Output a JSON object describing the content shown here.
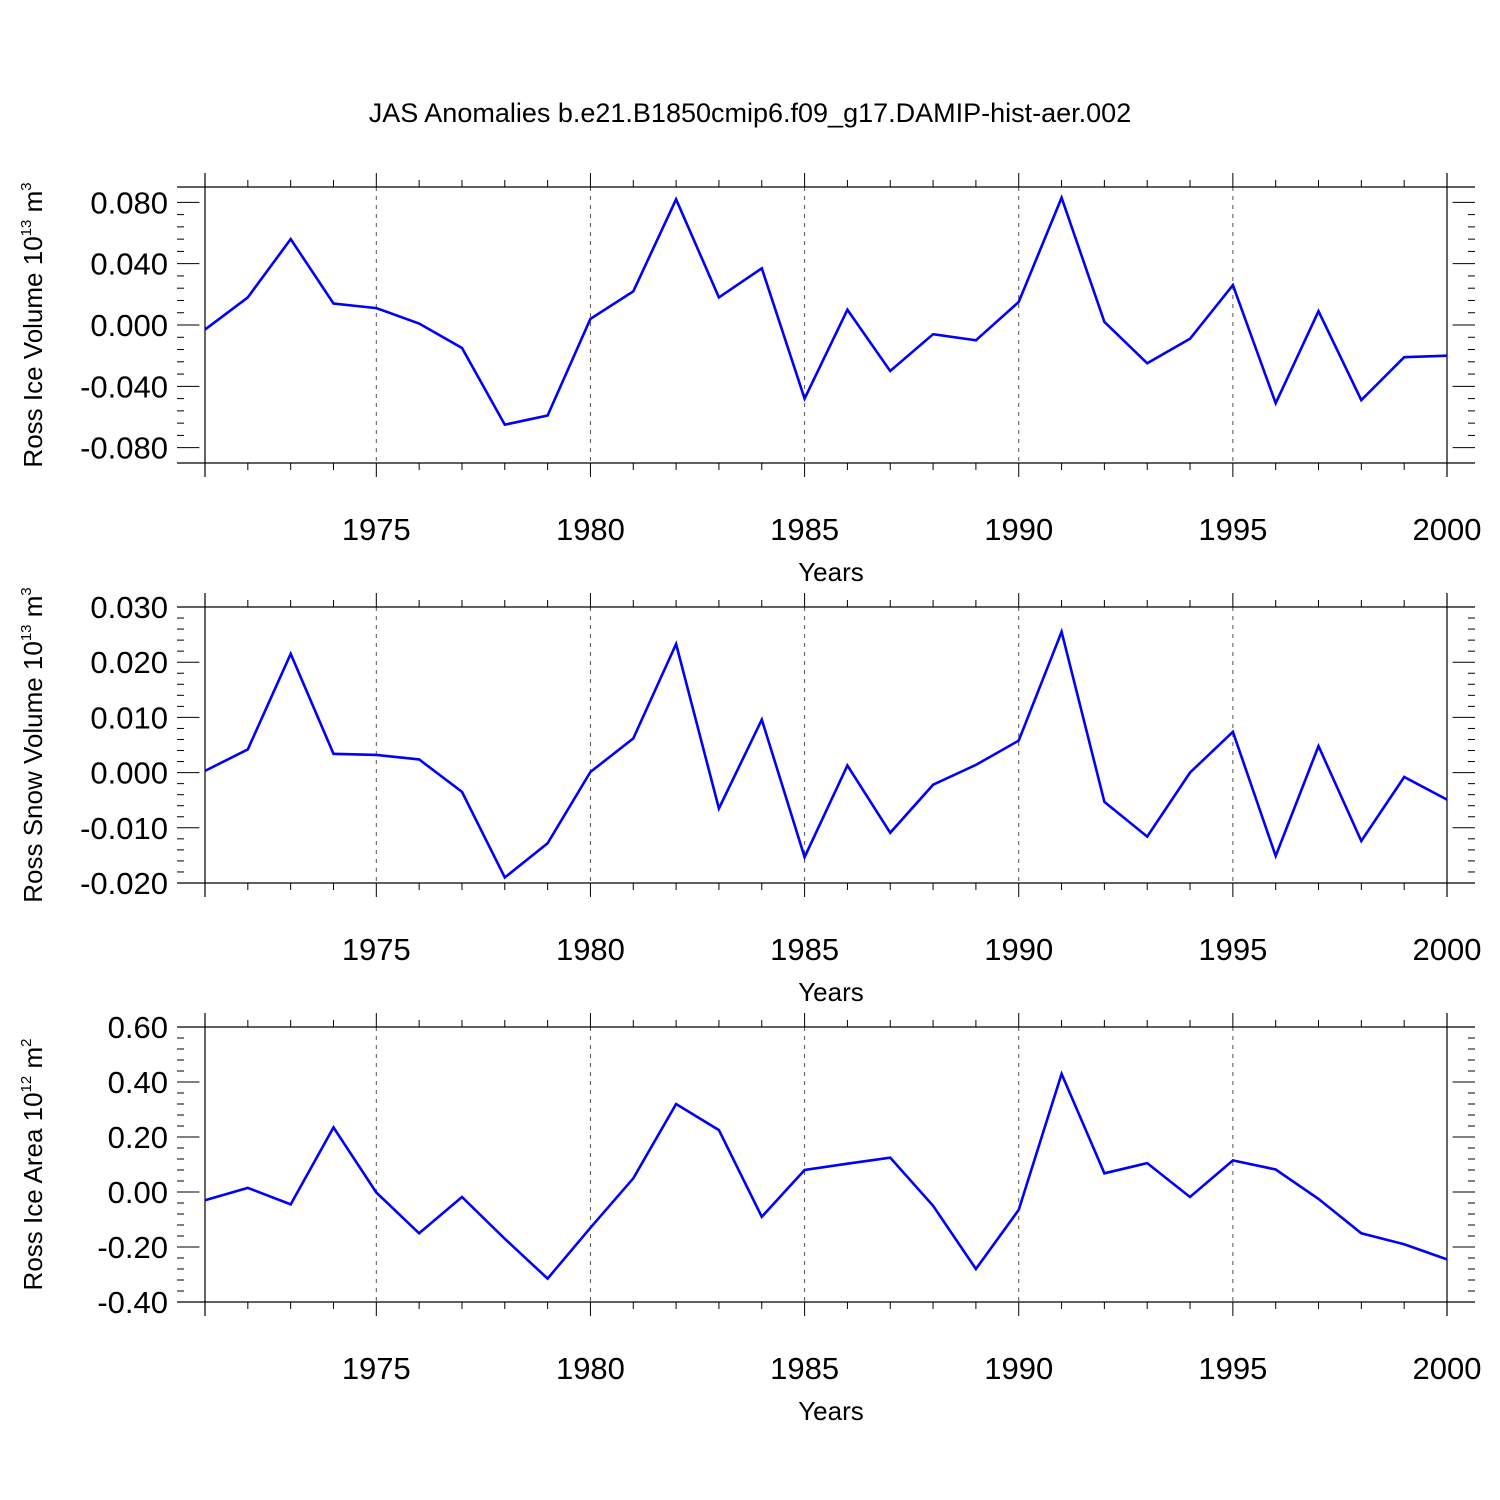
{
  "title": "JAS Anomalies b.e21.B1850cmip6.f09_g17.DAMIP-hist-aer.002",
  "line_color": "#0000ff",
  "chart_data": [
    {
      "type": "line",
      "ylabel_text": "Ross Ice Volume 10",
      "ylabel_exp": "13",
      "ylabel_unit": " m",
      "ylabel_unit_exp": "3",
      "xlabel": "Years",
      "xlim": [
        1971,
        2000
      ],
      "ylim": [
        -0.09,
        0.09
      ],
      "xticks": [
        1975,
        1980,
        1985,
        1990,
        1995,
        2000
      ],
      "yticks": [
        -0.08,
        -0.04,
        0.0,
        0.04,
        0.08
      ],
      "ytick_labels": [
        "-0.080",
        "-0.040",
        "0.000",
        "0.040",
        "0.080"
      ],
      "grid": "dashed vertical at major x ticks",
      "series": [
        {
          "x": [
            1971,
            1972,
            1973,
            1974,
            1975,
            1976,
            1977,
            1978,
            1979,
            1980,
            1981,
            1982,
            1983,
            1984,
            1985,
            1986,
            1987,
            1988,
            1989,
            1990,
            1991,
            1992,
            1993,
            1994,
            1995,
            1996,
            1997,
            1998,
            1999,
            2000
          ],
          "values": [
            -0.003,
            0.018,
            0.056,
            0.014,
            0.011,
            0.001,
            -0.015,
            -0.065,
            -0.059,
            0.004,
            0.022,
            0.082,
            0.018,
            0.037,
            -0.048,
            0.01,
            -0.03,
            -0.006,
            -0.01,
            0.015,
            0.083,
            0.002,
            -0.025,
            -0.009,
            0.026,
            -0.051,
            0.009,
            -0.049,
            -0.021,
            -0.02
          ]
        }
      ]
    },
    {
      "type": "line",
      "ylabel_text": "Ross Snow Volume 10",
      "ylabel_exp": "13",
      "ylabel_unit": " m",
      "ylabel_unit_exp": "3",
      "xlabel": "Years",
      "xlim": [
        1971,
        2000
      ],
      "ylim": [
        -0.02,
        0.03
      ],
      "xticks": [
        1975,
        1980,
        1985,
        1990,
        1995,
        2000
      ],
      "yticks": [
        -0.02,
        -0.01,
        0.0,
        0.01,
        0.02,
        0.03
      ],
      "ytick_labels": [
        "-0.020",
        "-0.010",
        "0.000",
        "0.010",
        "0.020",
        "0.030"
      ],
      "grid": "dashed vertical at major x ticks",
      "series": [
        {
          "x": [
            1971,
            1972,
            1973,
            1974,
            1975,
            1976,
            1977,
            1978,
            1979,
            1980,
            1981,
            1982,
            1983,
            1984,
            1985,
            1986,
            1987,
            1988,
            1989,
            1990,
            1991,
            1992,
            1993,
            1994,
            1995,
            1996,
            1997,
            1998,
            1999,
            2000
          ],
          "values": [
            0.0003,
            0.0042,
            0.0215,
            0.0034,
            0.0032,
            0.0024,
            -0.0035,
            -0.019,
            -0.0128,
            0.0001,
            0.0062,
            0.0233,
            -0.0065,
            0.0096,
            -0.0153,
            0.0013,
            -0.0109,
            -0.0022,
            0.0014,
            0.0058,
            0.0255,
            -0.0053,
            -0.0116,
            0.0,
            0.0074,
            -0.0151,
            0.0048,
            -0.0124,
            -0.0008,
            -0.0049
          ]
        }
      ]
    },
    {
      "type": "line",
      "ylabel_text": "Ross Ice Area 10",
      "ylabel_exp": "12",
      "ylabel_unit": " m",
      "ylabel_unit_exp": "2",
      "xlabel": "Years",
      "xlim": [
        1971,
        2000
      ],
      "ylim": [
        -0.4,
        0.6
      ],
      "xticks": [
        1975,
        1980,
        1985,
        1990,
        1995,
        2000
      ],
      "yticks": [
        -0.4,
        -0.2,
        0.0,
        0.2,
        0.4,
        0.6
      ],
      "ytick_labels": [
        "-0.40",
        "-0.20",
        "0.00",
        "0.20",
        "0.40",
        "0.60"
      ],
      "grid": "dashed vertical at major x ticks",
      "series": [
        {
          "x": [
            1971,
            1972,
            1973,
            1974,
            1975,
            1976,
            1977,
            1978,
            1979,
            1980,
            1981,
            1982,
            1983,
            1984,
            1985,
            1986,
            1987,
            1988,
            1989,
            1990,
            1991,
            1992,
            1993,
            1994,
            1995,
            1996,
            1997,
            1998,
            1999,
            2000
          ],
          "values": [
            -0.03,
            0.015,
            -0.045,
            0.235,
            -0.002,
            -0.15,
            -0.018,
            -0.17,
            -0.315,
            -0.13,
            0.05,
            0.32,
            0.225,
            -0.09,
            0.08,
            0.103,
            0.125,
            -0.05,
            -0.28,
            -0.065,
            0.43,
            0.068,
            0.105,
            -0.018,
            0.115,
            0.082,
            -0.025,
            -0.15,
            -0.19,
            -0.245
          ]
        }
      ]
    }
  ]
}
